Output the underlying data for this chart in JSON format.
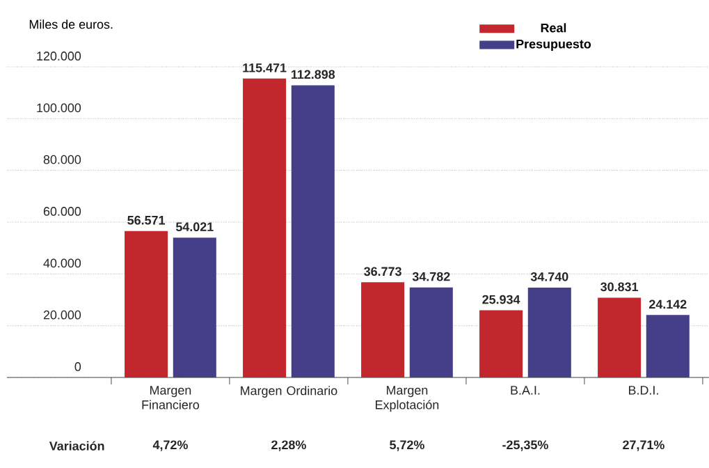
{
  "chart_data": {
    "type": "bar",
    "ylabel": "Miles de euros.",
    "categories": [
      "Margen Financiero",
      "Margen Ordinario",
      "Margen Explotación",
      "B.A.I.",
      "B.D.I."
    ],
    "series": [
      {
        "name": "Real",
        "color": "#c1272d",
        "values": [
          56571,
          115471,
          36773,
          25934,
          30831
        ],
        "value_labels": [
          "56.571",
          "115.471",
          "36.773",
          "25.934",
          "30.831"
        ]
      },
      {
        "name": "Presupuesto",
        "color": "#453f8a",
        "values": [
          54021,
          112898,
          34782,
          34740,
          24142
        ],
        "value_labels": [
          "54.021",
          "112.898",
          "34.782",
          "34.740",
          "24.142"
        ]
      }
    ],
    "ylim": [
      0,
      120000
    ],
    "yticks": [
      {
        "value": 0,
        "label": "0"
      },
      {
        "value": 20000,
        "label": "20.000"
      },
      {
        "value": 40000,
        "label": "40.000"
      },
      {
        "value": 60000,
        "label": "60.000"
      },
      {
        "value": 80000,
        "label": "80.000"
      },
      {
        "value": 100000,
        "label": "100.000"
      },
      {
        "value": 120000,
        "label": "120.000"
      }
    ],
    "grid": "y",
    "legend": "top right",
    "annotations": [
      "Variación",
      "4,72%",
      "2,28%",
      "5,72%",
      "-25,35%",
      "27,71%"
    ]
  }
}
